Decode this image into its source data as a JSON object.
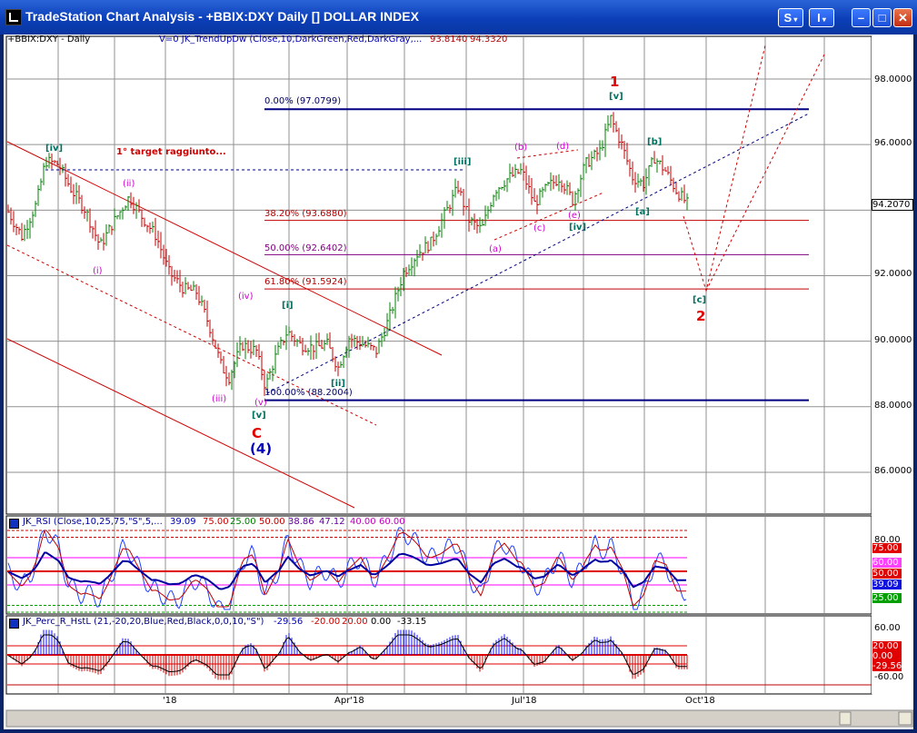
{
  "window": {
    "title": "TradeStation Chart Analysis - +BBIX:DXY Daily [] DOLLAR INDEX",
    "buttons": {
      "s_label": "S",
      "i_label": "I",
      "min": "–",
      "max": "□",
      "close": "✕"
    }
  },
  "chart": {
    "symbol_label": "+BBIX:DXY - Daily",
    "study_label": "V=0  JK_TrendUpDw (Close,10,DarkGreen,Red,DarkGray,...",
    "study_value1": "93.8140",
    "study_value2": "94.3320",
    "price_axis": [
      "98.0000",
      "96.0000",
      "94.0000",
      "92.0000",
      "90.0000",
      "88.0000",
      "86.0000"
    ],
    "last_price": "94.2070",
    "x_axis": [
      "'18",
      "Apr'18",
      "Jul'18",
      "Oct'18"
    ],
    "fib_levels": [
      {
        "label": "0.00% (97.0799)",
        "value": 97.0799
      },
      {
        "label": "38.20% (93.6880)",
        "value": 93.688
      },
      {
        "label": "50.00% (92.6402)",
        "value": 92.6402
      },
      {
        "label": "61.80% (91.5924)",
        "value": 91.5924
      },
      {
        "label": "100.00% (88.2004)",
        "value": 88.2004
      }
    ],
    "target_note": "1° target raggiunto...",
    "wave_labels": {
      "iv_green": "[iv]",
      "ii_magenta": "(ii)",
      "i_magenta": "(i)",
      "iv_magenta": "(iv)",
      "i_green": "[i]",
      "iii_magenta": "(iii)",
      "v_magenta": "(v)",
      "v_green": "[v]",
      "C": "C",
      "four": "(4)",
      "ii_green": "[ii]",
      "iii_green": "[iii]",
      "a_mag": "(a)",
      "b_mag": "(b)",
      "c_mag": "(c)",
      "d_mag": "(d)",
      "e_mag": "(e)",
      "iv_green2": "[iv]",
      "one": "1",
      "v_green2": "[v]",
      "b_green": "[b]",
      "a_green": "[a]",
      "c_green": "[c]",
      "two": "2"
    }
  },
  "rsi": {
    "label": "JK_RSI (Close,10,25,75,\"S\",5,...",
    "values": [
      "39.09",
      "75.00",
      "25.00",
      "50.00",
      "38.86",
      "47.12",
      "40.00",
      "60.00"
    ],
    "axis": [
      "80.00",
      "75.00",
      "60.00",
      "50.00",
      "39.09",
      "25.00"
    ]
  },
  "perc": {
    "label": "JK_Perc_R_HstL (21,-20,20,Blue,Red,Black,0,0,10,\"S\")",
    "values": [
      "-29.56",
      "-20.00",
      "20.00",
      "0.00",
      "-33.15"
    ],
    "axis": [
      "60.00",
      "20.00",
      "0.00",
      "-29.56",
      "-60.00"
    ]
  },
  "colors": {
    "accent": "#0b3fb8",
    "red": "#dd0000",
    "green": "#007050",
    "magenta": "#dd00dd",
    "blue": "#0000a0"
  }
}
